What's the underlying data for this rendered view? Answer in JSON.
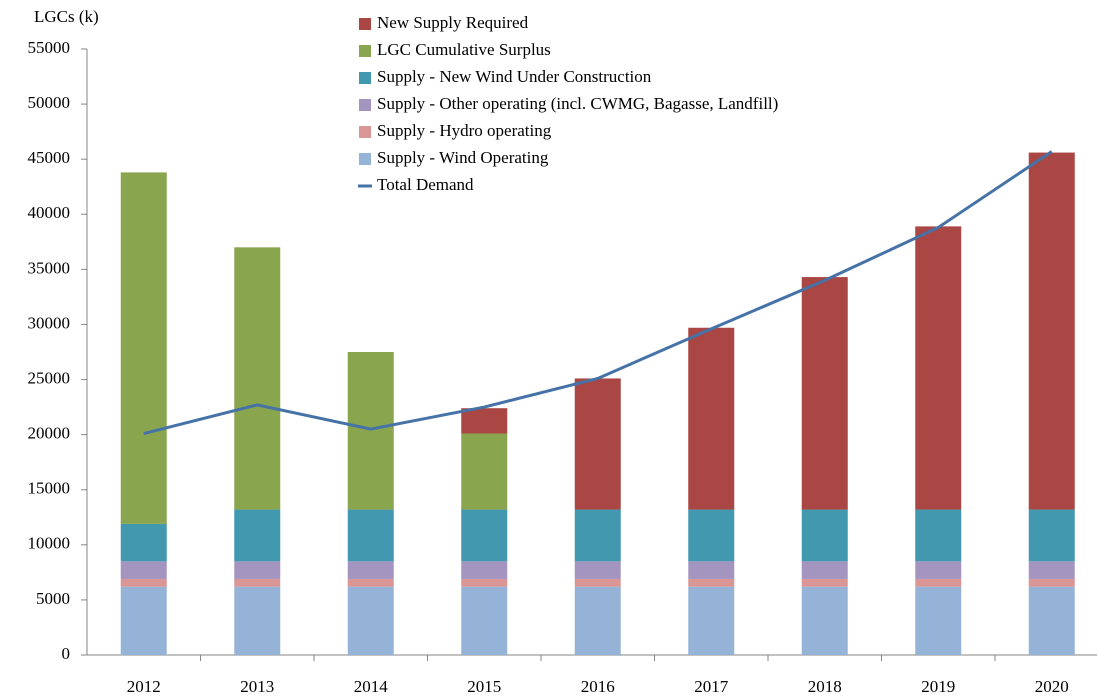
{
  "chart_data": {
    "type": "stacked-bar-line",
    "y_label": "LGCs (k)",
    "categories": [
      "2012",
      "2013",
      "2014",
      "2015",
      "2016",
      "2017",
      "2018",
      "2019",
      "2020"
    ],
    "series": [
      {
        "name": "New Supply Required",
        "type": "bar",
        "color": "#aa4643",
        "values": [
          0,
          0,
          0,
          2300,
          11900,
          16500,
          21100,
          25700,
          32400
        ]
      },
      {
        "name": "LGC Cumulative Surplus",
        "type": "bar",
        "color": "#89a54e",
        "values": [
          31900,
          23800,
          14300,
          6900,
          0,
          0,
          0,
          0,
          0
        ]
      },
      {
        "name": "Supply - New Wind Under Construction",
        "type": "bar",
        "color": "#4198af",
        "values": [
          3400,
          4700,
          4700,
          4700,
          4700,
          4700,
          4700,
          4700,
          4700
        ]
      },
      {
        "name": "Supply - Other operating (incl. CWMG, Bagasse, Landfill)",
        "type": "bar",
        "color": "#a495c0",
        "values": [
          1600,
          1600,
          1600,
          1600,
          1600,
          1600,
          1600,
          1600,
          1600
        ]
      },
      {
        "name": "Supply - Hydro operating",
        "type": "bar",
        "color": "#d99694",
        "values": [
          700,
          700,
          700,
          700,
          700,
          700,
          700,
          700,
          700
        ]
      },
      {
        "name": "Supply - Wind Operating",
        "type": "bar",
        "color": "#95b3d7",
        "values": [
          6200,
          6200,
          6200,
          6200,
          6200,
          6200,
          6200,
          6200,
          6200
        ]
      },
      {
        "name": "Total Demand",
        "type": "line",
        "color": "#4572a7",
        "values": [
          20100,
          22700,
          20500,
          22500,
          25100,
          29600,
          34000,
          38800,
          45700
        ]
      }
    ],
    "ylim": [
      0,
      55000
    ],
    "yticks": [
      0,
      5000,
      10000,
      15000,
      20000,
      25000,
      30000,
      35000,
      40000,
      45000,
      50000,
      55000
    ],
    "grid": false
  }
}
